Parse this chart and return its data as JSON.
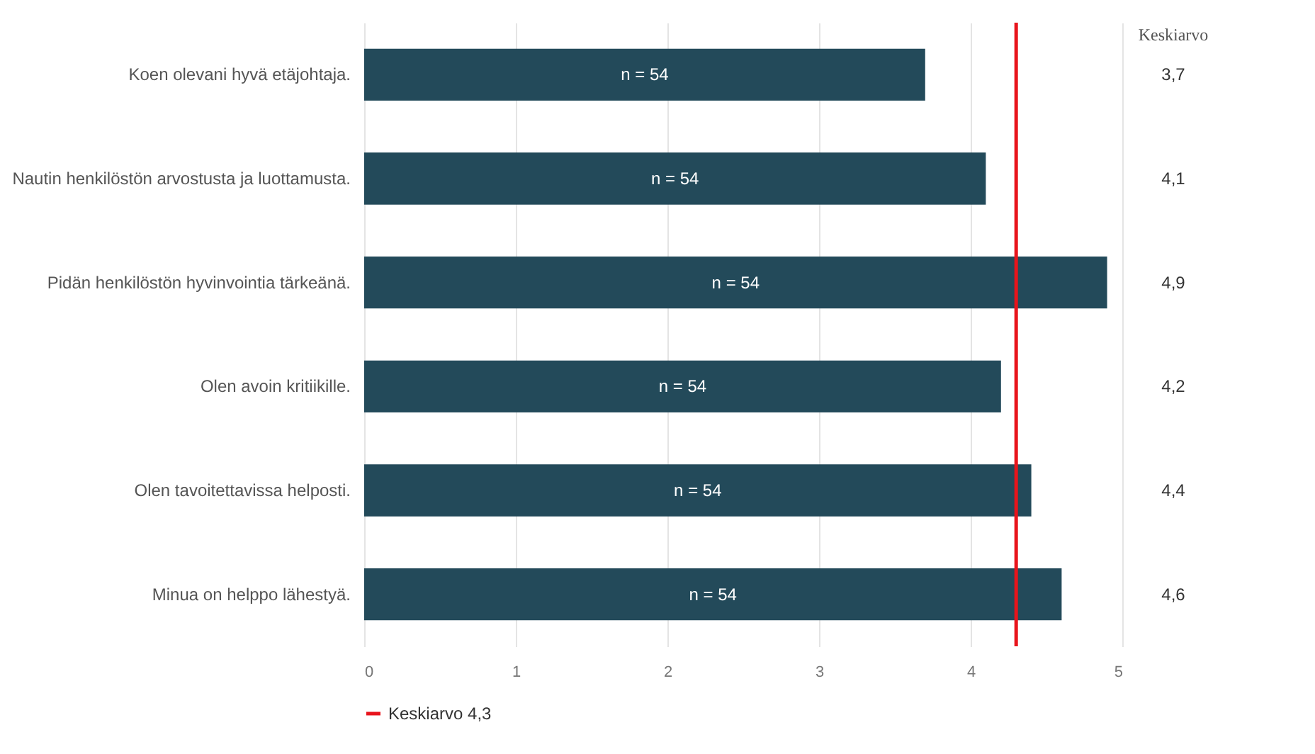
{
  "chart_data": {
    "type": "bar",
    "orientation": "horizontal",
    "categories": [
      "Koen olevani hyvä etäjohtaja.",
      "Nautin henkilöstön arvostusta ja luottamusta.",
      "Pidän henkilöstön hyvinvointia tärkeänä.",
      "Olen avoin kritiikille.",
      "Olen tavoitettavissa helposti.",
      "Minua on helppo lähestyä."
    ],
    "values": [
      3.7,
      4.1,
      4.9,
      4.2,
      4.4,
      4.6
    ],
    "value_labels": [
      "3,7",
      "4,1",
      "4,9",
      "4,2",
      "4,4",
      "4,6"
    ],
    "color": "#234a5a",
    "xlim": [
      0,
      5
    ],
    "xticks": [
      0,
      1,
      2,
      3,
      4,
      5
    ],
    "grid": "x",
    "ref_lines": [
      {
        "axis": "x",
        "value": 4.3,
        "label": "Keskiarvo 4,3",
        "color": "#e8141c"
      }
    ],
    "legend": "bottom",
    "annotations": [
      "Keskiarvo",
      "n = 54",
      "n = 54",
      "n = 54",
      "n = 54",
      "n = 54",
      "n = 54"
    ]
  }
}
